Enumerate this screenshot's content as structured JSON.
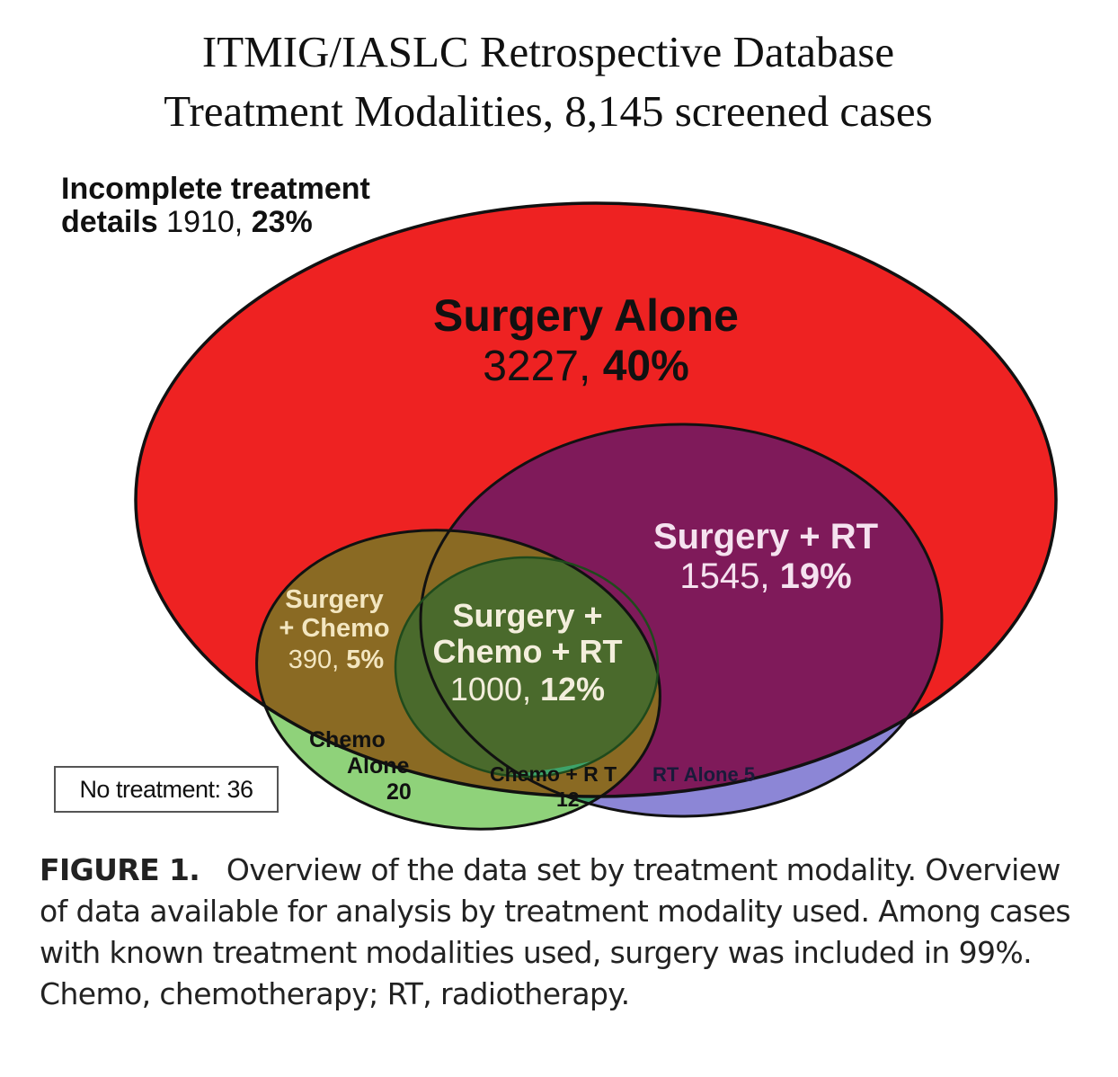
{
  "figure": {
    "title_line1": "ITMIG/IASLC Retrospective Database",
    "title_line2": "Treatment Modalities, 8,145 screened cases",
    "incomplete": {
      "label_line1": "Incomplete treatment",
      "label_word": "details",
      "count": "1910,",
      "percent": "23%"
    },
    "no_treatment": "No treatment: 36",
    "regions": {
      "surgery_alone": {
        "name": "Surgery Alone",
        "count": "3227,",
        "percent": "40%"
      },
      "surgery_rt": {
        "name": "Surgery + RT",
        "count": "1545,",
        "percent": "19%"
      },
      "surgery_chemo": {
        "name_line1": "Surgery",
        "name_line2": "+ Chemo",
        "count": "390,",
        "percent": "5%"
      },
      "surgery_chemo_rt": {
        "name_line1": "Surgery +",
        "name_line2": "Chemo + RT",
        "count": "1000,",
        "percent": "12%"
      },
      "chemo_alone": {
        "name_line1": "Chemo",
        "name_line2": "Alone",
        "count": "20"
      },
      "chemo_rt": {
        "name": "Chemo + R T",
        "count": "12"
      },
      "rt_alone": {
        "name": "RT Alone 5"
      }
    },
    "colors": {
      "surgery": "#ee2222",
      "rt": "#7f1a5a",
      "chemo": "#8fd27a",
      "surgery_chemo": "#8a6a23",
      "surgery_chemo_rt": "#4a6a2c",
      "chemo_rt": "#3da36a",
      "rt_alone": "#8c86d6"
    }
  },
  "caption": {
    "label": "FIGURE 1.",
    "text": "Overview of the data set by treatment modality. Overview of data available for analysis by treatment modality used. Among cases with known treatment modalities used, surgery was included in 99%. Chemo, chemotherapy; RT, radiotherapy."
  },
  "chart_data": {
    "type": "venn",
    "title": "ITMIG/IASLC Retrospective Database Treatment Modalities, 8,145 screened cases",
    "total_screened": 8145,
    "sets": [
      "Surgery",
      "Chemo",
      "RT"
    ],
    "regions": [
      {
        "sets": [
          "Surgery"
        ],
        "label": "Surgery Alone",
        "count": 3227,
        "percent": 40
      },
      {
        "sets": [
          "Surgery",
          "RT"
        ],
        "label": "Surgery + RT",
        "count": 1545,
        "percent": 19
      },
      {
        "sets": [
          "Surgery",
          "Chemo"
        ],
        "label": "Surgery + Chemo",
        "count": 390,
        "percent": 5
      },
      {
        "sets": [
          "Surgery",
          "Chemo",
          "RT"
        ],
        "label": "Surgery + Chemo + RT",
        "count": 1000,
        "percent": 12
      },
      {
        "sets": [
          "Chemo"
        ],
        "label": "Chemo Alone",
        "count": 20
      },
      {
        "sets": [
          "Chemo",
          "RT"
        ],
        "label": "Chemo + RT",
        "count": 12
      },
      {
        "sets": [
          "RT"
        ],
        "label": "RT Alone",
        "count": 5
      }
    ],
    "other": [
      {
        "label": "Incomplete treatment details",
        "count": 1910,
        "percent": 23
      },
      {
        "label": "No treatment",
        "count": 36
      }
    ]
  }
}
